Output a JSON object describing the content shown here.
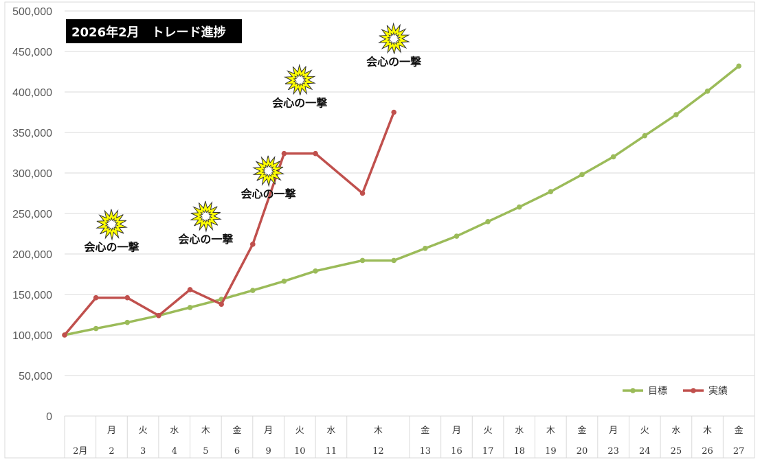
{
  "chart_data": {
    "type": "line",
    "title": "2026年2月　トレード進捗",
    "month_label": "2月",
    "categories": [
      {
        "day": "",
        "weekday": ""
      },
      {
        "day": "2",
        "weekday": "月"
      },
      {
        "day": "3",
        "weekday": "火"
      },
      {
        "day": "4",
        "weekday": "水"
      },
      {
        "day": "5",
        "weekday": "木"
      },
      {
        "day": "6",
        "weekday": "金"
      },
      {
        "day": "9",
        "weekday": "月"
      },
      {
        "day": "10",
        "weekday": "火"
      },
      {
        "day": "11",
        "weekday": "水"
      },
      {
        "day": "12",
        "weekday": "木"
      },
      {
        "day": "13",
        "weekday": "金"
      },
      {
        "day": "16",
        "weekday": "月"
      },
      {
        "day": "17",
        "weekday": "火"
      },
      {
        "day": "18",
        "weekday": "水"
      },
      {
        "day": "19",
        "weekday": "木"
      },
      {
        "day": "20",
        "weekday": "金"
      },
      {
        "day": "23",
        "weekday": "月"
      },
      {
        "day": "24",
        "weekday": "火"
      },
      {
        "day": "25",
        "weekday": "水"
      },
      {
        "day": "26",
        "weekday": "木"
      },
      {
        "day": "27",
        "weekday": "金"
      }
    ],
    "y_ticks": [
      "0",
      "50,000",
      "100,000",
      "150,000",
      "200,000",
      "250,000",
      "300,000",
      "350,000",
      "400,000",
      "450,000",
      "500,000"
    ],
    "ylim": [
      0,
      500000
    ],
    "grid": true,
    "legend_position": "bottom-right",
    "series": [
      {
        "name": "目標",
        "color": "#9bbb59",
        "points": [
          [
            0,
            100000
          ],
          [
            1,
            108000
          ],
          [
            2,
            115500
          ],
          [
            3,
            124000
          ],
          [
            4,
            134000
          ],
          [
            5,
            144000
          ],
          [
            6,
            155000
          ],
          [
            7,
            166500
          ],
          [
            8,
            179000
          ],
          [
            9.5,
            192000
          ],
          [
            10.5,
            192000
          ],
          [
            11.5,
            207000
          ],
          [
            12.5,
            222000
          ],
          [
            13.5,
            240000
          ],
          [
            14.5,
            258000
          ],
          [
            15.5,
            277000
          ],
          [
            16.5,
            298000
          ],
          [
            17.5,
            320000
          ],
          [
            18.5,
            346000
          ],
          [
            19.5,
            372000
          ],
          [
            20.5,
            401000
          ],
          [
            21.5,
            432000
          ]
        ]
      },
      {
        "name": "実績",
        "color": "#c0504d",
        "points": [
          [
            0,
            100000
          ],
          [
            1,
            146000
          ],
          [
            2,
            146000
          ],
          [
            3,
            124000
          ],
          [
            4,
            156000
          ],
          [
            5,
            138000
          ],
          [
            6,
            212000
          ],
          [
            7,
            324000
          ],
          [
            8,
            324000
          ],
          [
            9.5,
            275000
          ],
          [
            10.5,
            375000
          ]
        ]
      }
    ],
    "annotations": [
      {
        "text": "会心の一撃",
        "x": 1.5,
        "y": 146000
      },
      {
        "text": "会心の一撃",
        "x": 4.5,
        "y": 156000
      },
      {
        "text": "会心の一撃",
        "x": 6.5,
        "y": 212000
      },
      {
        "text": "会心の一撃",
        "x": 7.5,
        "y": 324000
      },
      {
        "text": "会心の一撃",
        "x": 10.5,
        "y": 375000
      }
    ]
  }
}
